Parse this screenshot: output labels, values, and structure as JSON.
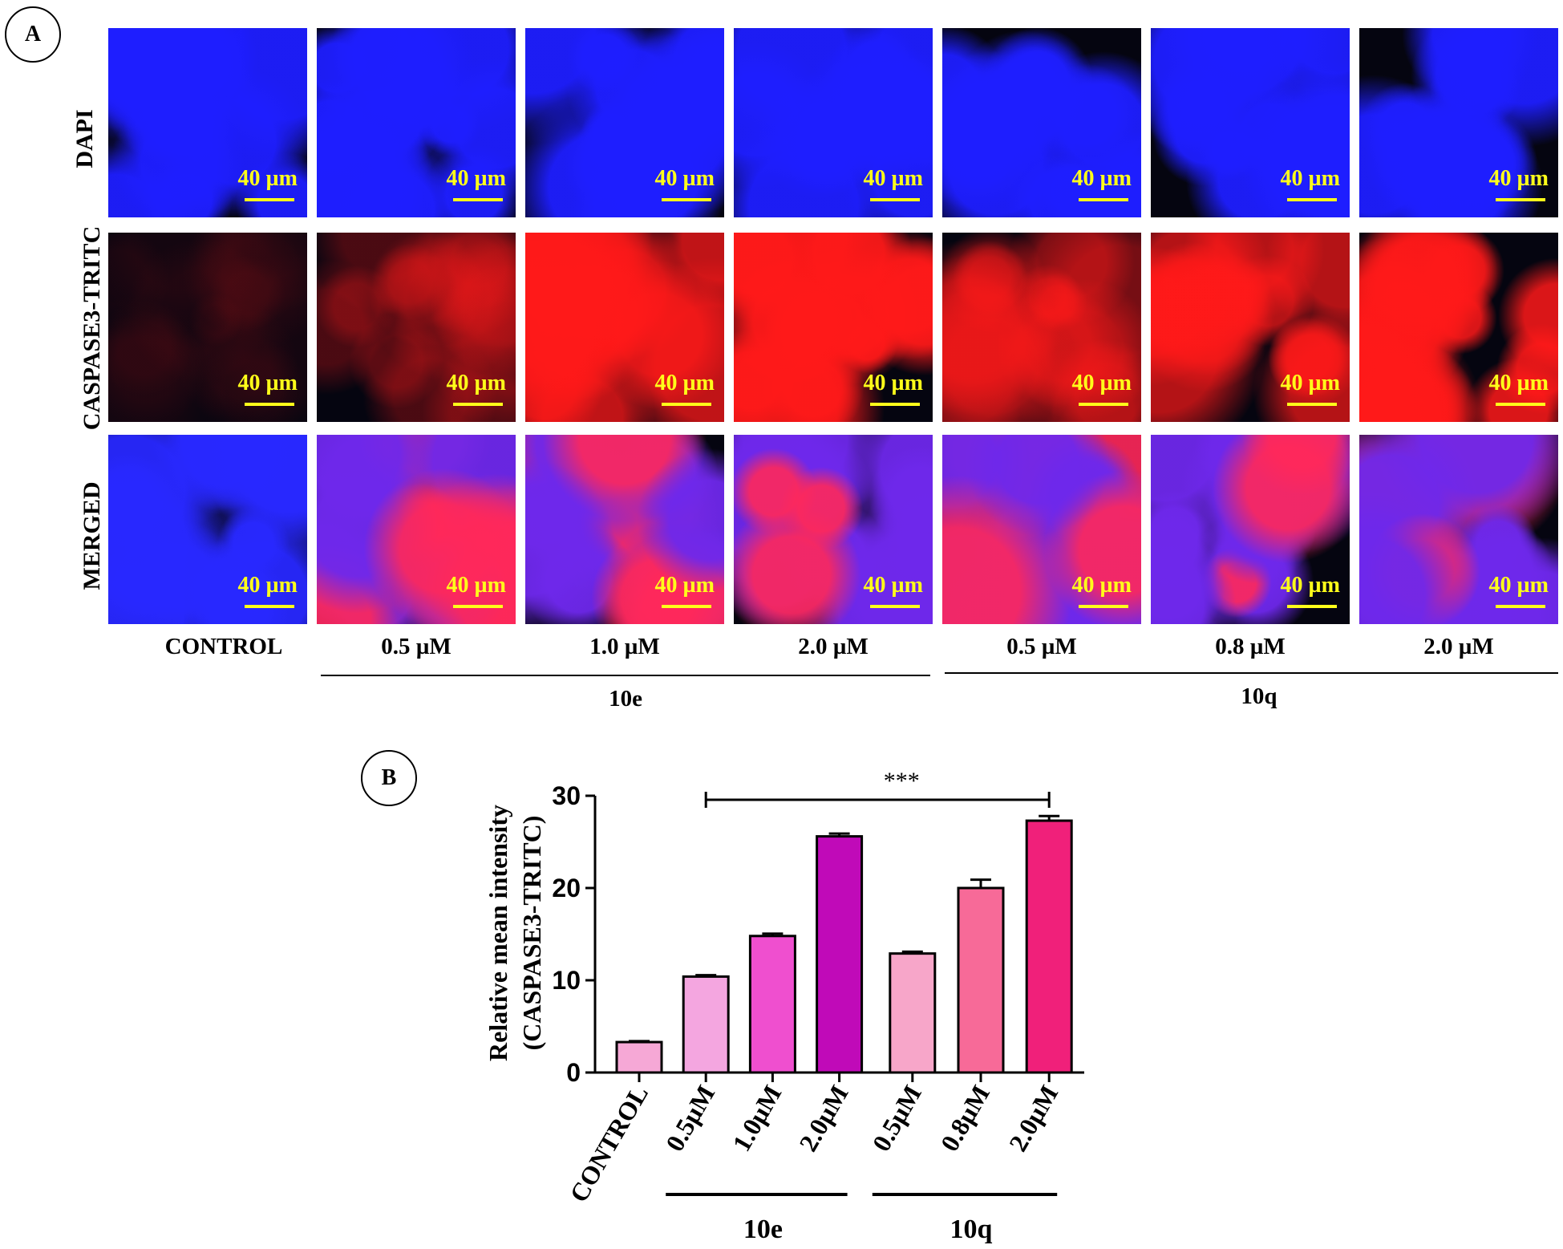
{
  "panel_a": {
    "label": "A",
    "row_labels": [
      "DAPI",
      "CASPASE3-TRITC",
      "MERGED"
    ],
    "scale_bar_text": "40 µm",
    "column_labels": [
      "CONTROL",
      "0.5 µM",
      "1.0 µM",
      "2.0 µM",
      "0.5 µM",
      "0.8 µM",
      "2.0 µM"
    ],
    "groups": [
      "10e",
      "10q"
    ]
  },
  "panel_b": {
    "label": "B"
  },
  "colors": {
    "dapi": "#1a1aff",
    "tritc": "#ff2020",
    "merged_blue": "#3a2cf0",
    "merged_red": "#ff2a5a",
    "scale": "#ffff1a"
  },
  "chart_data": {
    "type": "bar",
    "ylabel_line1": "Relative mean intensity",
    "ylabel_line2": "(CASPASE3-TRITC)",
    "ylim": [
      0,
      30
    ],
    "yticks": [
      0,
      10,
      20,
      30
    ],
    "categories": [
      "CONTROL",
      "0.5µM",
      "1.0µM",
      "2.0µM",
      "0.5µM",
      "0.8µM",
      "2.0µM"
    ],
    "values": [
      3.3,
      10.4,
      14.8,
      25.6,
      12.9,
      20.0,
      27.3
    ],
    "errors": [
      0.1,
      0.15,
      0.25,
      0.3,
      0.2,
      0.9,
      0.5
    ],
    "bar_colors": [
      "#f6a8d6",
      "#f4a6e0",
      "#ef4fcf",
      "#c00ab8",
      "#f7a6c9",
      "#f76a98",
      "#f0207a"
    ],
    "groups": [
      {
        "name": "10e",
        "members": [
          1,
          2,
          3
        ]
      },
      {
        "name": "10q",
        "members": [
          4,
          5,
          6
        ]
      }
    ],
    "significance": {
      "text": "***",
      "from_index": 1,
      "to_index": 6
    }
  }
}
